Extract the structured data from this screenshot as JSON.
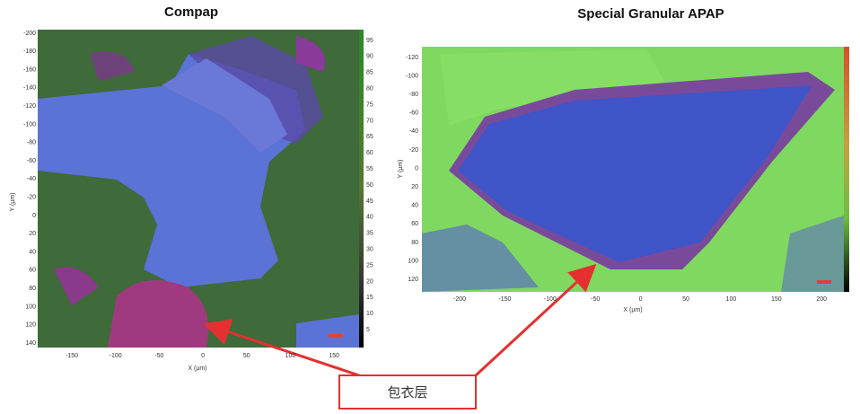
{
  "figure": {
    "annotation": "包衣层",
    "left": {
      "title": "Compap",
      "x_label": "X (µm)",
      "y_label": "Y (µm)",
      "x_ticks": [
        -150,
        -100,
        -50,
        0,
        50,
        100,
        150
      ],
      "y_ticks": [
        -200,
        -180,
        -160,
        -140,
        -120,
        -100,
        -80,
        -60,
        -40,
        -20,
        0,
        20,
        40,
        60,
        80,
        100,
        120,
        140
      ],
      "colorbar_ticks": [
        95,
        90,
        85,
        80,
        75,
        70,
        65,
        60,
        55,
        50,
        45,
        40,
        35,
        30,
        25,
        20,
        15,
        10,
        5
      ]
    },
    "right": {
      "title": "Special Granular APAP",
      "x_label": "X (µm)",
      "y_label": "Y (µm)",
      "x_ticks": [
        -200,
        -150,
        -100,
        -50,
        0,
        50,
        100,
        150,
        200
      ],
      "y_ticks": [
        -120,
        -100,
        -80,
        -60,
        -40,
        -20,
        0,
        20,
        40,
        60,
        80,
        100,
        120
      ]
    }
  }
}
